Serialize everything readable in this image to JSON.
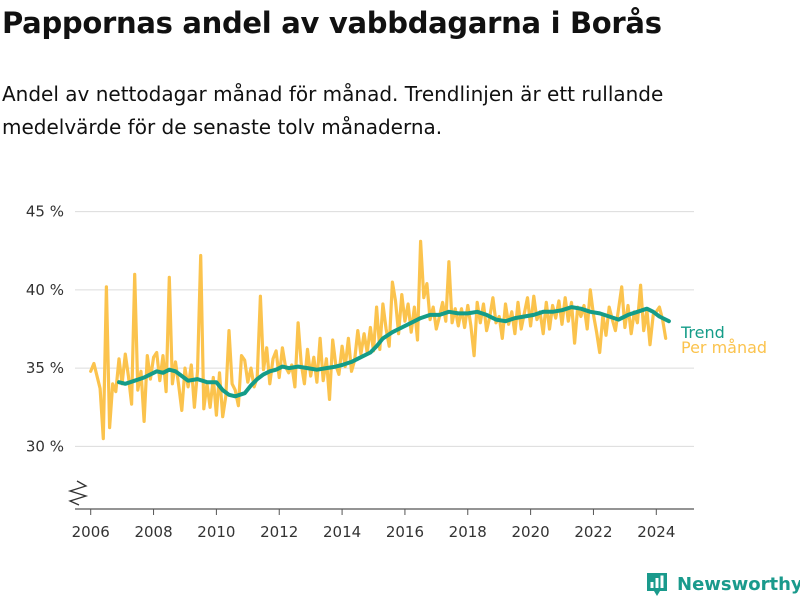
{
  "header": {
    "title": "Pappornas andel av vabbdagarna i Borås",
    "subtitle": "Andel av nettodagar månad för månad. Trendlinjen är ett rullande medelvärde för de senaste tolv månaderna."
  },
  "brand": {
    "name": "Newsworthy",
    "icon": "newsworthy-logo-icon",
    "color": "#1a9a8c"
  },
  "chart_data": {
    "type": "line",
    "xlabel": "",
    "ylabel": "",
    "x_ticks": [
      "2006",
      "2008",
      "2010",
      "2012",
      "2014",
      "2016",
      "2018",
      "2020",
      "2022",
      "2024"
    ],
    "y_ticks": [
      {
        "value": 30,
        "label": "30 %"
      },
      {
        "value": 35,
        "label": "35 %"
      },
      {
        "value": 40,
        "label": "40 %"
      },
      {
        "value": 45,
        "label": "45 %"
      }
    ],
    "xlim": [
      2005.5,
      2025.2
    ],
    "ylim": [
      26,
      46
    ],
    "axis_break": true,
    "grid": "horizontal",
    "legend": "right-end labels",
    "series": [
      {
        "name": "Trend",
        "color": "#149c88",
        "points": [
          [
            2006.9,
            34.1
          ],
          [
            2007.1,
            34.0
          ],
          [
            2007.4,
            34.2
          ],
          [
            2007.7,
            34.4
          ],
          [
            2007.9,
            34.6
          ],
          [
            2008.1,
            34.8
          ],
          [
            2008.3,
            34.7
          ],
          [
            2008.5,
            34.9
          ],
          [
            2008.7,
            34.8
          ],
          [
            2008.9,
            34.5
          ],
          [
            2009.1,
            34.2
          ],
          [
            2009.4,
            34.3
          ],
          [
            2009.7,
            34.1
          ],
          [
            2010.0,
            34.1
          ],
          [
            2010.2,
            33.6
          ],
          [
            2010.4,
            33.3
          ],
          [
            2010.6,
            33.2
          ],
          [
            2010.9,
            33.4
          ],
          [
            2011.1,
            33.9
          ],
          [
            2011.3,
            34.3
          ],
          [
            2011.5,
            34.6
          ],
          [
            2011.7,
            34.8
          ],
          [
            2011.9,
            34.9
          ],
          [
            2012.1,
            35.1
          ],
          [
            2012.3,
            35.0
          ],
          [
            2012.6,
            35.1
          ],
          [
            2012.9,
            35.0
          ],
          [
            2013.2,
            34.9
          ],
          [
            2013.5,
            35.0
          ],
          [
            2013.8,
            35.1
          ],
          [
            2014.0,
            35.2
          ],
          [
            2014.3,
            35.4
          ],
          [
            2014.6,
            35.7
          ],
          [
            2014.9,
            36.0
          ],
          [
            2015.1,
            36.4
          ],
          [
            2015.3,
            36.9
          ],
          [
            2015.6,
            37.3
          ],
          [
            2015.9,
            37.6
          ],
          [
            2016.2,
            37.9
          ],
          [
            2016.5,
            38.2
          ],
          [
            2016.8,
            38.4
          ],
          [
            2017.1,
            38.4
          ],
          [
            2017.4,
            38.6
          ],
          [
            2017.7,
            38.5
          ],
          [
            2018.0,
            38.5
          ],
          [
            2018.3,
            38.6
          ],
          [
            2018.6,
            38.4
          ],
          [
            2018.9,
            38.1
          ],
          [
            2019.2,
            38.0
          ],
          [
            2019.5,
            38.2
          ],
          [
            2019.8,
            38.3
          ],
          [
            2020.1,
            38.4
          ],
          [
            2020.4,
            38.6
          ],
          [
            2020.7,
            38.6
          ],
          [
            2021.0,
            38.7
          ],
          [
            2021.3,
            38.9
          ],
          [
            2021.6,
            38.8
          ],
          [
            2021.9,
            38.6
          ],
          [
            2022.2,
            38.5
          ],
          [
            2022.5,
            38.3
          ],
          [
            2022.8,
            38.1
          ],
          [
            2023.1,
            38.4
          ],
          [
            2023.4,
            38.6
          ],
          [
            2023.7,
            38.8
          ],
          [
            2023.9,
            38.6
          ],
          [
            2024.1,
            38.3
          ],
          [
            2024.4,
            38.0
          ]
        ]
      },
      {
        "name": "Per månad",
        "color": "#fbc34d",
        "points": [
          [
            2006.0,
            34.8
          ],
          [
            2006.1,
            35.3
          ],
          [
            2006.2,
            34.5
          ],
          [
            2006.3,
            33.7
          ],
          [
            2006.4,
            30.5
          ],
          [
            2006.5,
            40.2
          ],
          [
            2006.6,
            31.2
          ],
          [
            2006.7,
            34.0
          ],
          [
            2006.8,
            33.5
          ],
          [
            2006.9,
            35.6
          ],
          [
            2007.0,
            34.0
          ],
          [
            2007.1,
            35.9
          ],
          [
            2007.2,
            34.5
          ],
          [
            2007.3,
            32.7
          ],
          [
            2007.4,
            41.0
          ],
          [
            2007.5,
            33.6
          ],
          [
            2007.6,
            34.8
          ],
          [
            2007.7,
            31.6
          ],
          [
            2007.8,
            35.8
          ],
          [
            2007.9,
            34.3
          ],
          [
            2008.0,
            35.7
          ],
          [
            2008.1,
            36.0
          ],
          [
            2008.2,
            34.2
          ],
          [
            2008.3,
            35.8
          ],
          [
            2008.4,
            33.5
          ],
          [
            2008.5,
            40.8
          ],
          [
            2008.6,
            34.0
          ],
          [
            2008.7,
            35.4
          ],
          [
            2008.8,
            33.9
          ],
          [
            2008.9,
            32.3
          ],
          [
            2009.0,
            35.0
          ],
          [
            2009.1,
            33.8
          ],
          [
            2009.2,
            35.2
          ],
          [
            2009.3,
            32.5
          ],
          [
            2009.4,
            34.8
          ],
          [
            2009.5,
            42.2
          ],
          [
            2009.6,
            32.4
          ],
          [
            2009.7,
            34.0
          ],
          [
            2009.8,
            32.5
          ],
          [
            2009.9,
            34.4
          ],
          [
            2010.0,
            32.0
          ],
          [
            2010.1,
            34.7
          ],
          [
            2010.2,
            31.9
          ],
          [
            2010.3,
            33.2
          ],
          [
            2010.4,
            37.4
          ],
          [
            2010.5,
            34.0
          ],
          [
            2010.6,
            33.6
          ],
          [
            2010.7,
            32.6
          ],
          [
            2010.8,
            35.8
          ],
          [
            2010.9,
            35.5
          ],
          [
            2011.0,
            34.1
          ],
          [
            2011.1,
            35.0
          ],
          [
            2011.2,
            33.8
          ],
          [
            2011.3,
            34.4
          ],
          [
            2011.4,
            39.6
          ],
          [
            2011.5,
            34.9
          ],
          [
            2011.6,
            36.3
          ],
          [
            2011.7,
            34.0
          ],
          [
            2011.8,
            35.6
          ],
          [
            2011.9,
            36.1
          ],
          [
            2012.0,
            34.4
          ],
          [
            2012.1,
            36.3
          ],
          [
            2012.2,
            35.1
          ],
          [
            2012.3,
            34.7
          ],
          [
            2012.4,
            35.2
          ],
          [
            2012.5,
            33.8
          ],
          [
            2012.6,
            37.9
          ],
          [
            2012.7,
            35.3
          ],
          [
            2012.8,
            34.0
          ],
          [
            2012.9,
            36.2
          ],
          [
            2013.0,
            34.5
          ],
          [
            2013.1,
            35.7
          ],
          [
            2013.2,
            34.1
          ],
          [
            2013.3,
            36.9
          ],
          [
            2013.4,
            34.2
          ],
          [
            2013.5,
            35.6
          ],
          [
            2013.6,
            33.0
          ],
          [
            2013.7,
            36.8
          ],
          [
            2013.8,
            35.2
          ],
          [
            2013.9,
            34.6
          ],
          [
            2014.0,
            36.4
          ],
          [
            2014.1,
            35.1
          ],
          [
            2014.2,
            36.9
          ],
          [
            2014.3,
            34.8
          ],
          [
            2014.4,
            35.5
          ],
          [
            2014.5,
            37.4
          ],
          [
            2014.6,
            35.9
          ],
          [
            2014.7,
            37.2
          ],
          [
            2014.8,
            36.0
          ],
          [
            2014.9,
            37.6
          ],
          [
            2015.0,
            36.1
          ],
          [
            2015.1,
            38.9
          ],
          [
            2015.2,
            36.2
          ],
          [
            2015.3,
            39.1
          ],
          [
            2015.4,
            37.5
          ],
          [
            2015.5,
            36.4
          ],
          [
            2015.6,
            40.5
          ],
          [
            2015.7,
            39.3
          ],
          [
            2015.8,
            37.2
          ],
          [
            2015.9,
            39.7
          ],
          [
            2016.0,
            38.0
          ],
          [
            2016.1,
            39.1
          ],
          [
            2016.2,
            37.3
          ],
          [
            2016.3,
            38.9
          ],
          [
            2016.4,
            36.8
          ],
          [
            2016.5,
            43.1
          ],
          [
            2016.6,
            39.5
          ],
          [
            2016.7,
            40.4
          ],
          [
            2016.8,
            38.1
          ],
          [
            2016.9,
            38.9
          ],
          [
            2017.0,
            37.5
          ],
          [
            2017.1,
            38.3
          ],
          [
            2017.2,
            39.2
          ],
          [
            2017.3,
            38.0
          ],
          [
            2017.4,
            41.8
          ],
          [
            2017.5,
            37.9
          ],
          [
            2017.6,
            38.8
          ],
          [
            2017.7,
            37.7
          ],
          [
            2017.8,
            38.8
          ],
          [
            2017.9,
            37.6
          ],
          [
            2018.0,
            39.0
          ],
          [
            2018.1,
            37.7
          ],
          [
            2018.2,
            35.8
          ],
          [
            2018.3,
            39.2
          ],
          [
            2018.4,
            37.9
          ],
          [
            2018.5,
            39.1
          ],
          [
            2018.6,
            37.4
          ],
          [
            2018.7,
            38.3
          ],
          [
            2018.8,
            39.5
          ],
          [
            2018.9,
            37.9
          ],
          [
            2019.0,
            38.3
          ],
          [
            2019.1,
            36.9
          ],
          [
            2019.2,
            39.1
          ],
          [
            2019.3,
            37.8
          ],
          [
            2019.4,
            38.6
          ],
          [
            2019.5,
            37.2
          ],
          [
            2019.6,
            39.2
          ],
          [
            2019.7,
            37.5
          ],
          [
            2019.8,
            38.5
          ],
          [
            2019.9,
            39.5
          ],
          [
            2020.0,
            37.7
          ],
          [
            2020.1,
            39.6
          ],
          [
            2020.2,
            38.1
          ],
          [
            2020.3,
            38.6
          ],
          [
            2020.4,
            37.2
          ],
          [
            2020.5,
            39.2
          ],
          [
            2020.6,
            37.5
          ],
          [
            2020.7,
            39.0
          ],
          [
            2020.8,
            38.2
          ],
          [
            2020.9,
            39.3
          ],
          [
            2021.0,
            37.8
          ],
          [
            2021.1,
            39.5
          ],
          [
            2021.2,
            38.0
          ],
          [
            2021.3,
            39.2
          ],
          [
            2021.4,
            36.6
          ],
          [
            2021.5,
            38.9
          ],
          [
            2021.6,
            38.3
          ],
          [
            2021.7,
            39.0
          ],
          [
            2021.8,
            37.5
          ],
          [
            2021.9,
            40.0
          ],
          [
            2022.0,
            38.4
          ],
          [
            2022.1,
            37.3
          ],
          [
            2022.2,
            36.0
          ],
          [
            2022.3,
            38.4
          ],
          [
            2022.4,
            37.1
          ],
          [
            2022.5,
            38.9
          ],
          [
            2022.6,
            38.1
          ],
          [
            2022.7,
            37.4
          ],
          [
            2022.8,
            38.8
          ],
          [
            2022.9,
            40.2
          ],
          [
            2023.0,
            37.6
          ],
          [
            2023.1,
            39.0
          ],
          [
            2023.2,
            37.2
          ],
          [
            2023.3,
            38.6
          ],
          [
            2023.4,
            37.9
          ],
          [
            2023.5,
            40.3
          ],
          [
            2023.6,
            37.4
          ],
          [
            2023.7,
            38.7
          ],
          [
            2023.8,
            36.5
          ],
          [
            2023.9,
            38.4
          ],
          [
            2024.0,
            38.6
          ],
          [
            2024.1,
            38.9
          ],
          [
            2024.2,
            38.1
          ],
          [
            2024.3,
            36.9
          ]
        ]
      }
    ]
  }
}
